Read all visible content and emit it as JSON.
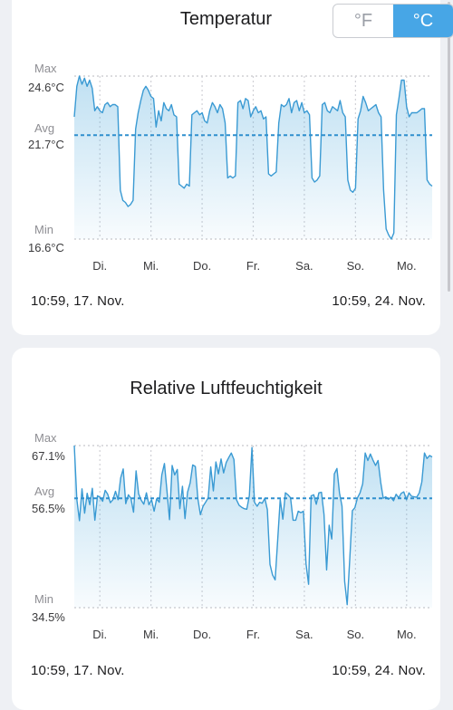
{
  "temperature": {
    "title": "Temperatur",
    "unit_toggle": {
      "fahrenheit": "°F",
      "celsius": "°C",
      "selected": "celsius"
    },
    "labels": {
      "max": "Max",
      "avg": "Avg",
      "min": "Min"
    },
    "values": {
      "max": "24.6°C",
      "avg": "21.7°C",
      "min": "16.6°C"
    },
    "range_start": "10:59,  17. Nov.",
    "range_end": "10:59,  24. Nov.",
    "chart_data": {
      "type": "area",
      "days": [
        "Di.",
        "Mi.",
        "Do.",
        "Fr.",
        "Sa.",
        "So.",
        "Mo."
      ],
      "ylim": [
        16.6,
        24.6
      ],
      "avg": 21.7,
      "grid": "dotted",
      "values": [
        22.6,
        24.1,
        24.6,
        24.2,
        24.5,
        24.1,
        24.4,
        24.0,
        22.9,
        23.1,
        22.9,
        22.8,
        23.2,
        23.3,
        23.1,
        23.2,
        23.2,
        23.1,
        19.0,
        18.5,
        18.4,
        18.2,
        18.3,
        18.5,
        22.0,
        22.8,
        23.4,
        23.9,
        24.1,
        23.9,
        23.6,
        23.5,
        22.1,
        22.9,
        22.4,
        23.3,
        23.0,
        22.9,
        23.2,
        22.7,
        22.6,
        19.3,
        19.2,
        19.1,
        19.3,
        19.2,
        22.7,
        22.8,
        22.9,
        22.7,
        22.8,
        22.4,
        22.3,
        22.9,
        23.3,
        23.1,
        22.8,
        23.2,
        23.0,
        22.3,
        19.6,
        19.7,
        19.6,
        19.7,
        23.3,
        23.4,
        23.0,
        23.5,
        23.4,
        22.6,
        22.9,
        23.1,
        22.8,
        22.9,
        22.5,
        22.6,
        19.8,
        19.7,
        19.8,
        19.9,
        22.3,
        23.2,
        23.1,
        23.2,
        23.5,
        22.8,
        23.3,
        23.4,
        22.9,
        23.3,
        22.8,
        22.9,
        22.7,
        19.6,
        19.4,
        19.5,
        19.7,
        23.2,
        23.3,
        22.9,
        22.8,
        23.1,
        23.0,
        22.9,
        23.4,
        22.8,
        22.6,
        19.5,
        19.0,
        18.9,
        19.1,
        22.5,
        22.9,
        23.6,
        23.3,
        22.9,
        23.0,
        23.1,
        23.2,
        22.8,
        22.6,
        19.0,
        17.1,
        16.8,
        16.6,
        16.9,
        22.7,
        23.5,
        24.4,
        24.4,
        23.1,
        22.6,
        22.8,
        22.8,
        22.8,
        22.9,
        23.0,
        23.0,
        19.5,
        19.3,
        19.2
      ]
    }
  },
  "humidity": {
    "title": "Relative Luftfeuchtigkeit",
    "labels": {
      "max": "Max",
      "avg": "Avg",
      "min": "Min"
    },
    "values": {
      "max": "67.1%",
      "avg": "56.5%",
      "min": "34.5%"
    },
    "range_start": "10:59,  17. Nov.",
    "range_end": "10:59,  24. Nov.",
    "chart_data": {
      "type": "area",
      "days": [
        "Di.",
        "Mi.",
        "Do.",
        "Fr.",
        "Sa.",
        "So.",
        "Mo."
      ],
      "ylim": [
        34.5,
        67.1
      ],
      "avg": 56.5,
      "grid": "dotted",
      "values": [
        67.1,
        56.3,
        52.0,
        58.4,
        53.5,
        57.5,
        55.2,
        58.5,
        52.1,
        57.0,
        56.7,
        55.9,
        58.1,
        57.3,
        55.6,
        56.2,
        57.9,
        56.2,
        60.6,
        62.4,
        55.4,
        57.2,
        56.5,
        53.7,
        62.0,
        57.4,
        56.1,
        55.3,
        57.6,
        55.2,
        56.2,
        53.9,
        56.4,
        55.7,
        61.2,
        63.5,
        58.0,
        52.2,
        63.1,
        61.2,
        62.3,
        54.4,
        58.9,
        52.4,
        57.7,
        59.6,
        63.2,
        62.9,
        56.4,
        53.2,
        54.9,
        55.7,
        56.6,
        62.8,
        58.0,
        63.8,
        61.4,
        64.4,
        61.6,
        63.7,
        64.7,
        65.6,
        64.3,
        56.2,
        55.1,
        54.7,
        54.4,
        54.3,
        57.0,
        66.7,
        55.7,
        54.9,
        55.7,
        55.5,
        56.5,
        54.2,
        43.2,
        41.1,
        40.1,
        48.1,
        56.3,
        52.3,
        57.6,
        57.2,
        56.6,
        52.1,
        52.1,
        53.9,
        53.6,
        53.9,
        43.3,
        39.2,
        57.0,
        57.2,
        55.3,
        57.6,
        57.7,
        53.3,
        42.1,
        51.1,
        48.3,
        61.4,
        62.5,
        57.6,
        54.9,
        39.8,
        35.1,
        44.4,
        54.0,
        54.6,
        56.6,
        57.6,
        59.4,
        65.6,
        64.1,
        65.4,
        64.2,
        63.1,
        64.1,
        59.7,
        56.5,
        56.8,
        56.3,
        56.7,
        56.0,
        57.3,
        56.6,
        57.5,
        57.8,
        56.2,
        57.6,
        56.9,
        56.8,
        56.7,
        57.6,
        59.8,
        65.6,
        64.5,
        65.1,
        64.8
      ]
    }
  }
}
